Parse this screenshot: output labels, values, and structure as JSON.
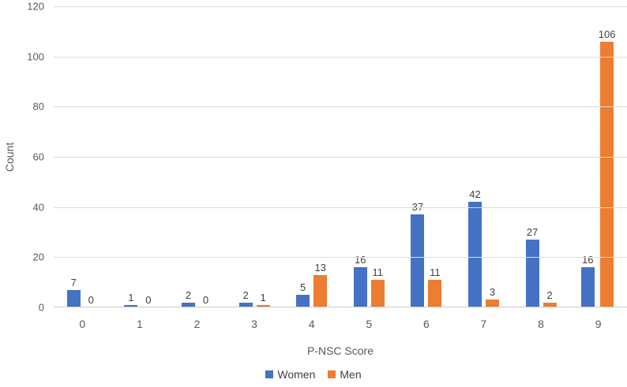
{
  "chart_data": {
    "type": "bar",
    "title": "",
    "xlabel": "P-NSC Score",
    "ylabel": "Count",
    "categories": [
      "0",
      "1",
      "2",
      "3",
      "4",
      "5",
      "6",
      "7",
      "8",
      "9"
    ],
    "series": [
      {
        "name": "Women",
        "color": "#4472C4",
        "values": [
          7,
          1,
          2,
          2,
          5,
          16,
          37,
          42,
          27,
          16
        ]
      },
      {
        "name": "Men",
        "color": "#ED7D31",
        "values": [
          0,
          0,
          0,
          1,
          13,
          11,
          11,
          3,
          2,
          106
        ]
      }
    ],
    "ylim": [
      0,
      120
    ],
    "yticks": [
      0,
      20,
      40,
      60,
      80,
      100,
      120
    ],
    "grid": true,
    "legend_position": "bottom",
    "data_labels": true
  },
  "colors": {
    "background": "#ffffff",
    "gridline": "#dcdcdc",
    "axis_line": "#c8c8c8",
    "tick_text": "#595959",
    "data_label_text": "#404040"
  }
}
